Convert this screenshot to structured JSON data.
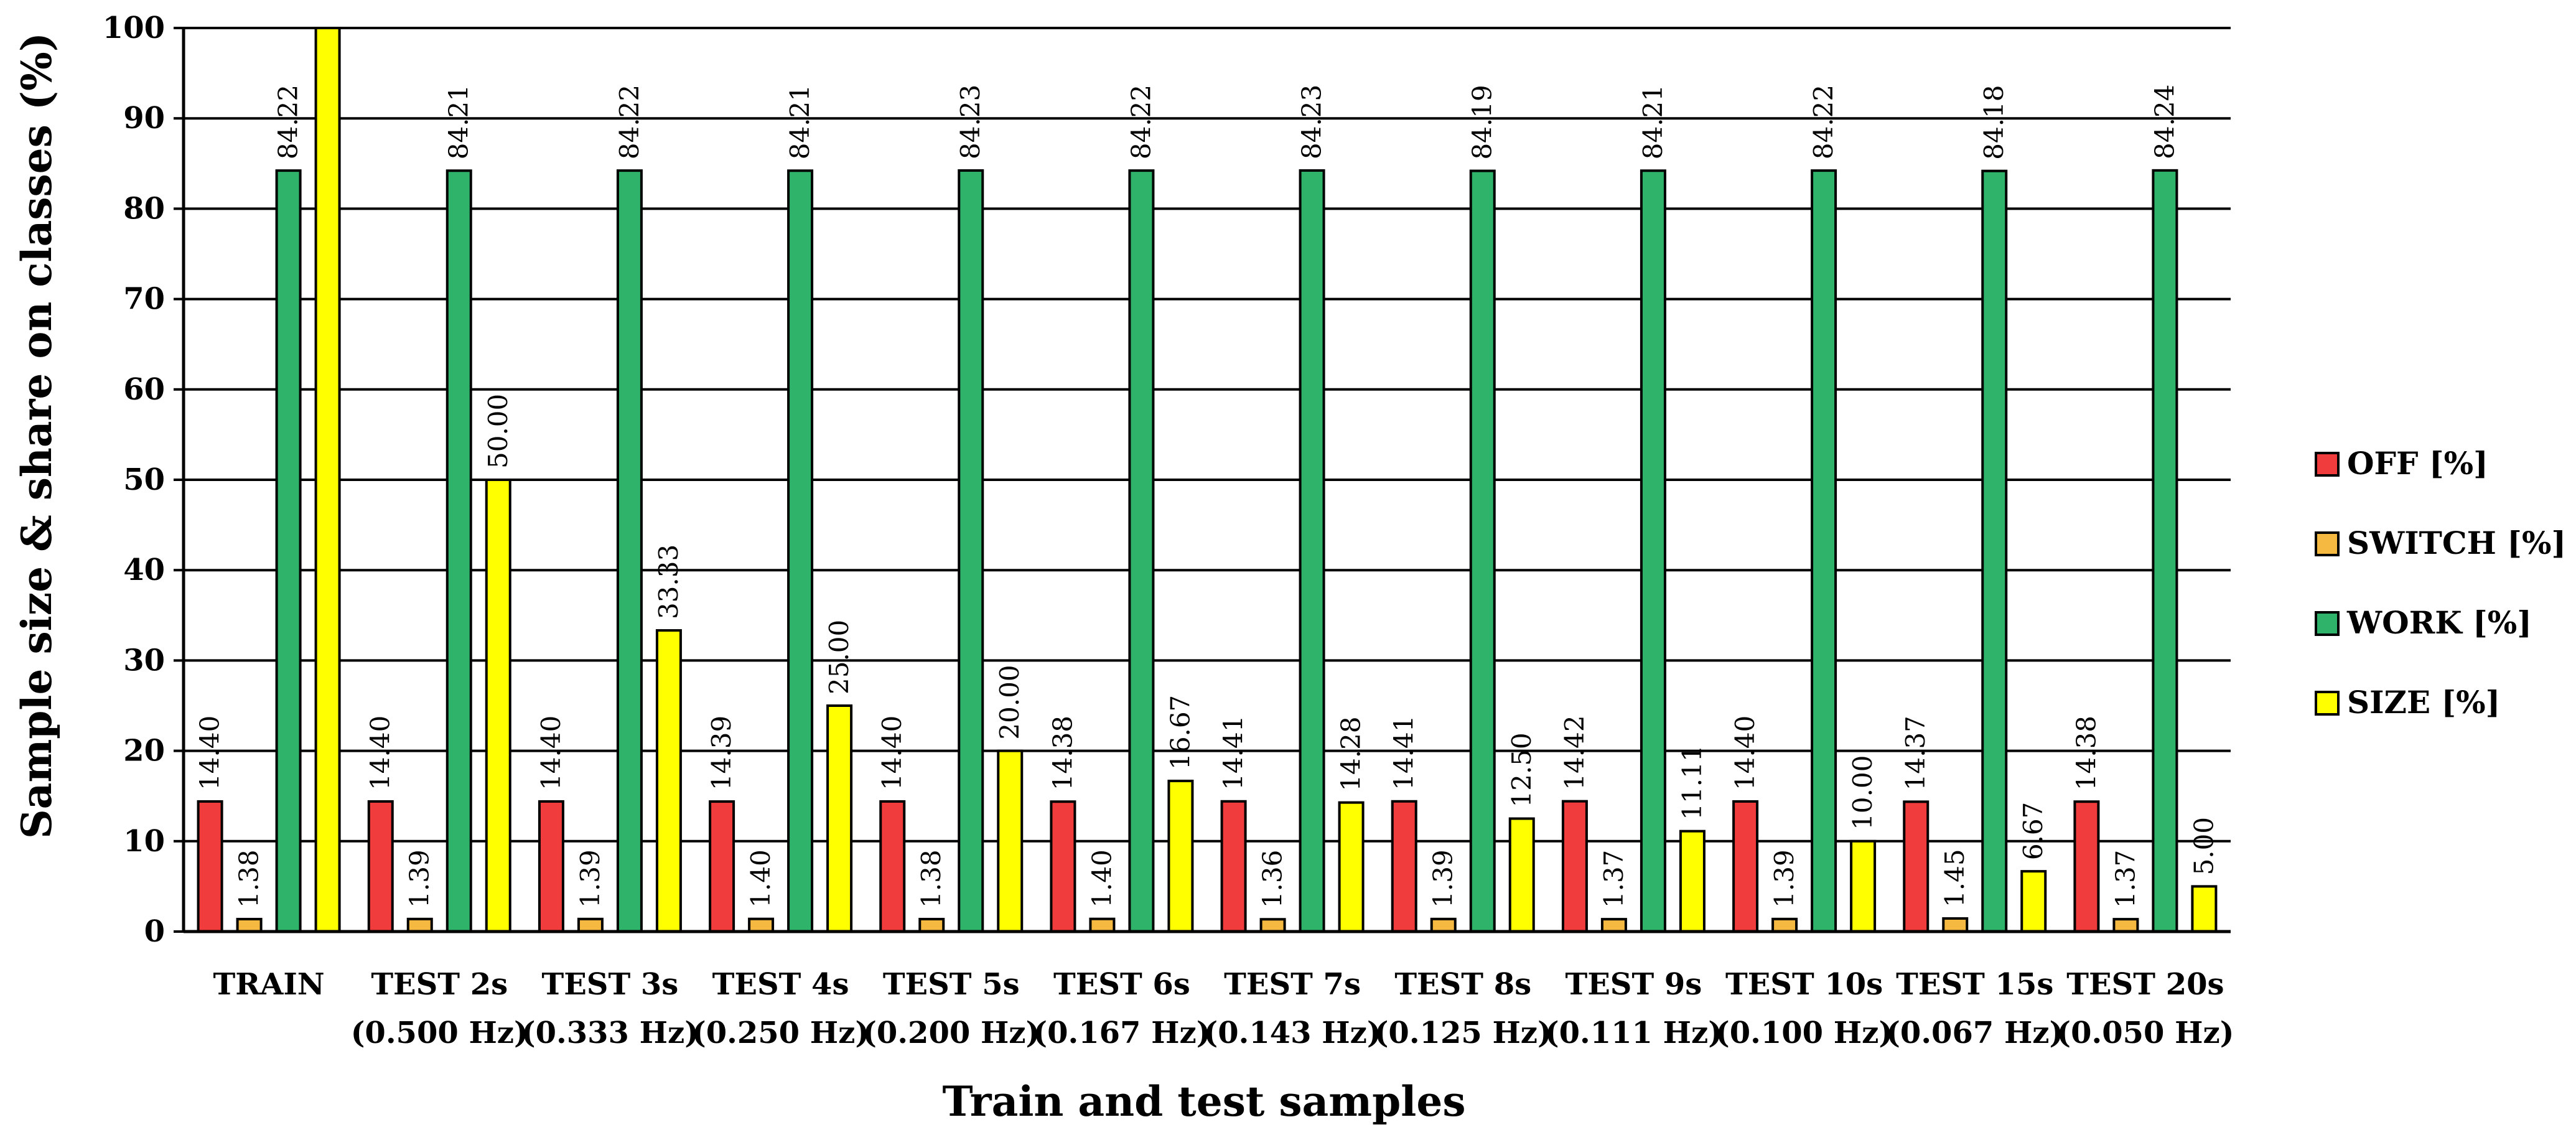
{
  "chart_data": {
    "type": "bar",
    "title": "",
    "xlabel": "Train and test samples",
    "ylabel": "Sample size & share on classes (%)",
    "ylim": [
      0,
      100
    ],
    "yticks": [
      "0",
      "10",
      "20",
      "30",
      "40",
      "50",
      "60",
      "70",
      "80",
      "90",
      "100"
    ],
    "grid": true,
    "legend_position": "right",
    "categories": [
      [
        "TRAIN",
        ""
      ],
      [
        "TEST 2s",
        "(0.500 Hz)"
      ],
      [
        "TEST 3s",
        "(0.333 Hz)"
      ],
      [
        "TEST 4s",
        "(0.250 Hz)"
      ],
      [
        "TEST 5s",
        "(0.200 Hz)"
      ],
      [
        "TEST 6s",
        "(0.167 Hz)"
      ],
      [
        "TEST 7s",
        "(0.143 Hz)"
      ],
      [
        "TEST 8s",
        "(0.125 Hz)"
      ],
      [
        "TEST 9s",
        "(0.111 Hz)"
      ],
      [
        "TEST 10s",
        "(0.100 Hz)"
      ],
      [
        "TEST 15s",
        "(0.067 Hz)"
      ],
      [
        "TEST 20s",
        "(0.050 Hz)"
      ]
    ],
    "series": [
      {
        "name": "OFF [%]",
        "color": "#f03c3c",
        "values": [
          14.4,
          14.4,
          14.4,
          14.39,
          14.4,
          14.38,
          14.41,
          14.41,
          14.42,
          14.4,
          14.37,
          14.38
        ],
        "labels": [
          "14.40",
          "14.40",
          "14.40",
          "14.39",
          "14.40",
          "14.38",
          "14.41",
          "14.41",
          "14.42",
          "14.40",
          "14.37",
          "14.38"
        ]
      },
      {
        "name": "SWITCH [%]",
        "color": "#f5b942",
        "values": [
          1.38,
          1.39,
          1.39,
          1.4,
          1.38,
          1.4,
          1.36,
          1.39,
          1.37,
          1.39,
          1.45,
          1.37
        ],
        "labels": [
          "1.38",
          "1.39",
          "1.39",
          "1.40",
          "1.38",
          "1.40",
          "1.36",
          "1.39",
          "1.37",
          "1.39",
          "1.45",
          "1.37"
        ]
      },
      {
        "name": "WORK [%]",
        "color": "#2fb36a",
        "values": [
          84.22,
          84.21,
          84.22,
          84.21,
          84.23,
          84.22,
          84.23,
          84.19,
          84.21,
          84.22,
          84.18,
          84.24
        ],
        "labels": [
          "84.22",
          "84.21",
          "84.22",
          "84.21",
          "84.23",
          "84.22",
          "84.23",
          "84.19",
          "84.21",
          "84.22",
          "84.18",
          "84.24"
        ]
      },
      {
        "name": "SIZE [%]",
        "color": "#ffff00",
        "values": [
          100,
          50.0,
          33.33,
          25.0,
          20.0,
          16.67,
          14.28,
          12.5,
          11.11,
          10.0,
          6.67,
          5.0
        ],
        "labels": [
          "",
          "50.00",
          "33.33",
          "25.00",
          "20.00",
          "16.67",
          "14.28",
          "12.50",
          "11.11",
          "10.00",
          "6.67",
          "5.00"
        ]
      }
    ]
  }
}
